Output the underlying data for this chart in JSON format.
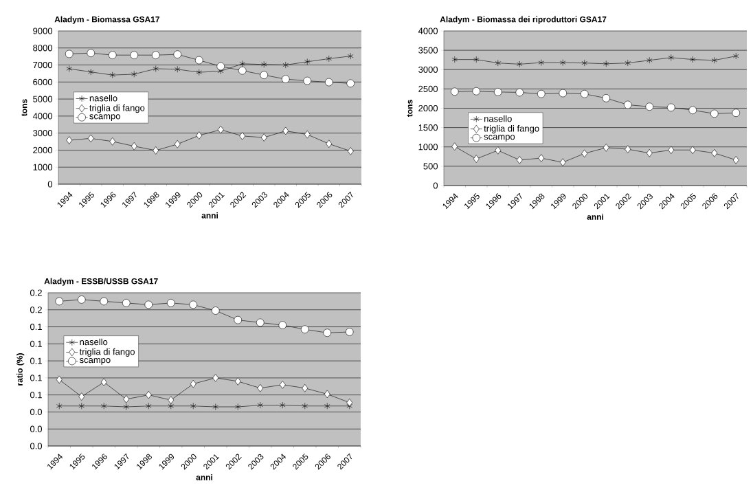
{
  "chart_data": [
    {
      "type": "line",
      "title": "Aladym - Biomassa GSA17",
      "xlabel": "anni",
      "ylabel": "tons",
      "categories": [
        "1994",
        "1995",
        "1996",
        "1997",
        "1998",
        "1999",
        "2000",
        "2001",
        "2002",
        "2003",
        "2004",
        "2005",
        "2006",
        "2007"
      ],
      "ylim": [
        0,
        9000
      ],
      "yticks": [
        0,
        1000,
        2000,
        3000,
        4000,
        5000,
        6000,
        7000,
        8000,
        9000
      ],
      "grid": "y",
      "legend": "left",
      "series": [
        {
          "name": "nasello",
          "color": "#000000",
          "marker": "cross",
          "values": [
            6780,
            6590,
            6410,
            6460,
            6780,
            6750,
            6570,
            6640,
            7070,
            7030,
            7000,
            7190,
            7370,
            7520
          ]
        },
        {
          "name": "triglia di fango",
          "color": "#000000",
          "marker": "diamond",
          "values": [
            2580,
            2690,
            2510,
            2230,
            1980,
            2350,
            2860,
            3200,
            2830,
            2740,
            3130,
            2920,
            2370,
            1940
          ]
        },
        {
          "name": "scampo",
          "color": "#000000",
          "marker": "circle",
          "values": [
            7650,
            7700,
            7580,
            7580,
            7580,
            7620,
            7280,
            6920,
            6670,
            6410,
            6170,
            6070,
            5990,
            5920
          ]
        }
      ]
    },
    {
      "type": "line",
      "title": "Aladym - Biomassa dei riproduttori GSA17",
      "xlabel": "anni",
      "ylabel": "tons",
      "categories": [
        "1994",
        "1995",
        "1996",
        "1997",
        "1998",
        "1999",
        "2000",
        "2001",
        "2002",
        "2003",
        "2004",
        "2005",
        "2006",
        "2007"
      ],
      "ylim": [
        0,
        4000
      ],
      "yticks": [
        0,
        500,
        1000,
        1500,
        2000,
        2500,
        3000,
        3500,
        4000
      ],
      "grid": "y",
      "legend": "bottom left",
      "series": [
        {
          "name": "nasello",
          "color": "#000000",
          "marker": "cross",
          "values": [
            3260,
            3260,
            3170,
            3140,
            3180,
            3180,
            3170,
            3150,
            3170,
            3240,
            3310,
            3260,
            3240,
            3350
          ]
        },
        {
          "name": "triglia di fango",
          "color": "#000000",
          "marker": "diamond",
          "values": [
            1010,
            690,
            910,
            660,
            710,
            600,
            830,
            980,
            940,
            840,
            920,
            920,
            840,
            660
          ]
        },
        {
          "name": "scampo",
          "color": "#000000",
          "marker": "circle",
          "values": [
            2430,
            2440,
            2420,
            2410,
            2370,
            2390,
            2370,
            2260,
            2090,
            2040,
            2020,
            1950,
            1860,
            1880
          ]
        }
      ]
    },
    {
      "type": "line",
      "title": "Aladym - ESSB/USSB GSA17",
      "xlabel": "anni",
      "ylabel": "ratio (%)",
      "categories": [
        "1994",
        "1995",
        "1996",
        "1997",
        "1998",
        "1999",
        "2000",
        "2001",
        "2002",
        "2003",
        "2004",
        "2005",
        "2006",
        "2007"
      ],
      "ylim": [
        0,
        0.18
      ],
      "yticks": [
        {
          "value": 0,
          "label": "0.0"
        },
        {
          "value": 0.02,
          "label": "0.0"
        },
        {
          "value": 0.04,
          "label": "0.0"
        },
        {
          "value": 0.06,
          "label": "0.1"
        },
        {
          "value": 0.08,
          "label": "0.1"
        },
        {
          "value": 0.1,
          "label": "0.1"
        },
        {
          "value": 0.12,
          "label": "0.1"
        },
        {
          "value": 0.14,
          "label": "0.1"
        },
        {
          "value": 0.16,
          "label": "0.2"
        },
        {
          "value": 0.18,
          "label": "0.2"
        }
      ],
      "grid": "y",
      "legend": "top left",
      "series": [
        {
          "name": "nasello",
          "color": "#000000",
          "marker": "cross",
          "values": [
            0.047,
            0.047,
            0.047,
            0.046,
            0.047,
            0.047,
            0.047,
            0.046,
            0.046,
            0.048,
            0.048,
            0.047,
            0.047,
            0.047
          ]
        },
        {
          "name": "triglia di fango",
          "color": "#000000",
          "marker": "diamond",
          "values": [
            0.078,
            0.058,
            0.075,
            0.055,
            0.06,
            0.054,
            0.073,
            0.08,
            0.076,
            0.068,
            0.072,
            0.068,
            0.061,
            0.051
          ]
        },
        {
          "name": "scampo",
          "color": "#000000",
          "marker": "circle",
          "values": [
            0.17,
            0.172,
            0.17,
            0.168,
            0.166,
            0.168,
            0.166,
            0.159,
            0.148,
            0.145,
            0.142,
            0.137,
            0.133,
            0.134
          ]
        }
      ]
    }
  ]
}
